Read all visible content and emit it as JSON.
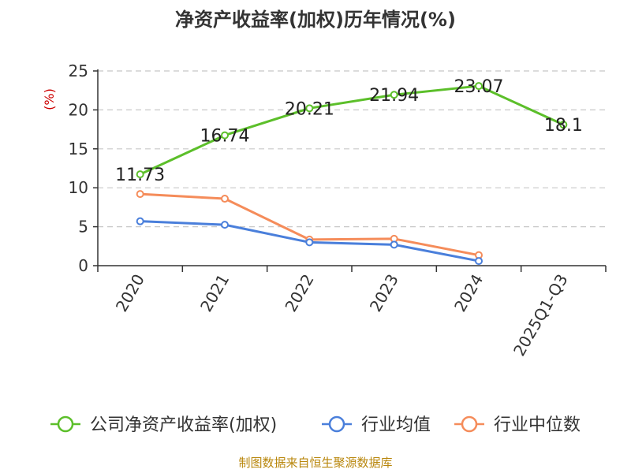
{
  "chart_data": {
    "type": "line",
    "title": "净资产收益率(加权)历年情况(%)",
    "ylabel": "(%)",
    "xlabel": "",
    "categories": [
      "2020",
      "2021",
      "2022",
      "2023",
      "2024",
      "2025Q1-Q3"
    ],
    "ylim": [
      0,
      25
    ],
    "yticks": [
      0,
      5,
      10,
      15,
      20,
      25
    ],
    "grid": true,
    "legend_position": "bottom",
    "series": [
      {
        "name": "公司净资产收益率(加权)",
        "color": "#5cbf2a",
        "values": [
          11.73,
          16.74,
          20.21,
          21.94,
          23.07,
          18.1
        ],
        "labels": true
      },
      {
        "name": "行业均值",
        "color": "#4a7fdb",
        "values": [
          5.7,
          5.25,
          3.0,
          2.7,
          0.6,
          null
        ],
        "labels": false
      },
      {
        "name": "行业中位数",
        "color": "#f58c5a",
        "values": [
          9.2,
          8.6,
          3.35,
          3.45,
          1.35,
          null
        ],
        "labels": false
      }
    ]
  },
  "footer": "制图数据来自恒生聚源数据库"
}
